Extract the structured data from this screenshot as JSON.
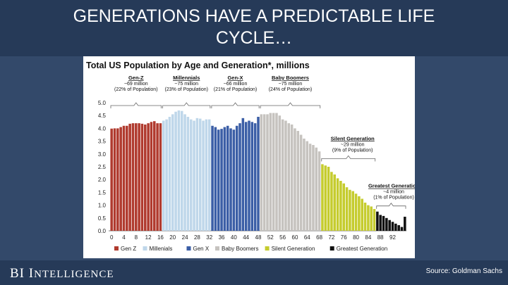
{
  "slide": {
    "title": "GENERATIONS HAVE A PREDICTABLE LIFE\nCYCLE…",
    "brand_initials": "BI",
    "brand_word_first": "I",
    "brand_word_rest": "NTELLIGENCE",
    "source": "Source: Goldman Sachs"
  },
  "chart_data": {
    "type": "bar",
    "title": "Total US Population by Age and Generation*, millions",
    "xlabel": "",
    "ylabel": "",
    "ylim": [
      0,
      5
    ],
    "yticks": [
      "0.0",
      "0.5",
      "1.0",
      "1.5",
      "2.0",
      "2.5",
      "3.0",
      "3.5",
      "4.0",
      "4.5",
      "5.0"
    ],
    "xticks": [
      "0",
      "4",
      "8",
      "12",
      "16",
      "20",
      "24",
      "28",
      "32",
      "36",
      "40",
      "44",
      "48",
      "52",
      "56",
      "60",
      "64",
      "68",
      "72",
      "76",
      "80",
      "84",
      "88",
      "92"
    ],
    "grid": false,
    "legend_position": "bottom",
    "colors": {
      "Gen Z": "#b03a2e",
      "Millenials": "#bfd7ea",
      "Gen X": "#3b5ea6",
      "Baby Boomers": "#c6c3bf",
      "Silent Generation": "#c5cc2e",
      "Greatest Generation": "#111111"
    },
    "series": [
      {
        "name": "Gen Z",
        "start_age": 0,
        "values": [
          3.99,
          4.0,
          4.0,
          4.05,
          4.1,
          4.1,
          4.18,
          4.2,
          4.2,
          4.2,
          4.18,
          4.15,
          4.2,
          4.25,
          4.28,
          4.2,
          4.2
        ]
      },
      {
        "name": "Millenials",
        "start_age": 17,
        "values": [
          4.3,
          4.35,
          4.45,
          4.55,
          4.65,
          4.7,
          4.68,
          4.55,
          4.45,
          4.35,
          4.3,
          4.4,
          4.38,
          4.3,
          4.35,
          4.35
        ]
      },
      {
        "name": "Gen X",
        "start_age": 33,
        "values": [
          4.1,
          4.05,
          3.95,
          3.98,
          4.05,
          4.1,
          4.0,
          3.95,
          4.1,
          4.2,
          4.4,
          4.25,
          4.3,
          4.25,
          4.2,
          4.45
        ]
      },
      {
        "name": "Baby Boomers",
        "start_age": 49,
        "values": [
          4.55,
          4.55,
          4.55,
          4.6,
          4.6,
          4.6,
          4.5,
          4.35,
          4.3,
          4.2,
          4.15,
          4.0,
          3.9,
          3.75,
          3.6,
          3.5,
          3.4,
          3.35,
          3.25,
          3.1
        ]
      },
      {
        "name": "Silent Generation",
        "start_age": 69,
        "values": [
          2.6,
          2.55,
          2.5,
          2.3,
          2.2,
          2.05,
          1.95,
          1.85,
          1.7,
          1.6,
          1.55,
          1.45,
          1.35,
          1.25,
          1.1,
          1.0,
          0.95,
          0.85
        ]
      },
      {
        "name": "Greatest Generation",
        "start_age": 87,
        "values": [
          0.75,
          0.62,
          0.58,
          0.5,
          0.42,
          0.35,
          0.28,
          0.22,
          0.15,
          0.55
        ]
      }
    ],
    "annotations": [
      {
        "series": "Gen Z",
        "lines": [
          "Gen-Z",
          "~69 million",
          "(22% of Population)"
        ]
      },
      {
        "series": "Millenials",
        "lines": [
          "Millennials",
          "~75 million",
          "(23% of Population)"
        ]
      },
      {
        "series": "Gen X",
        "lines": [
          "Gen-X",
          "~66 million",
          "(21% of Population)"
        ]
      },
      {
        "series": "Baby Boomers",
        "lines": [
          "Baby Boomers",
          "~75 million",
          "(24% of Population)"
        ]
      },
      {
        "series": "Silent Generation",
        "lines": [
          "Silent Generation",
          "~29 million",
          "(9% of Population)"
        ]
      },
      {
        "series": "Greatest Generation",
        "lines": [
          "Greatest Generation",
          "~4 million",
          "(1% of Population)"
        ]
      }
    ]
  }
}
